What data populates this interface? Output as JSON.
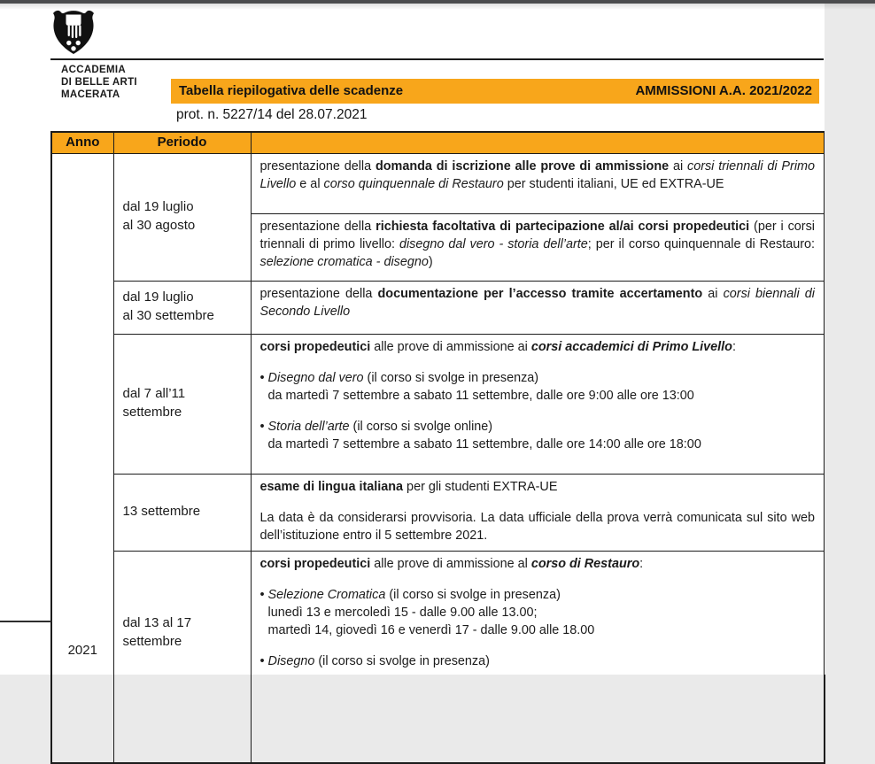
{
  "page": {
    "accent_orange": "#F8A61B",
    "paper_color": "#ffffff",
    "viewer_background": "#eaeaea",
    "top_bar_color": "#4b4c4e"
  },
  "header": {
    "logo_icon": "academy-shield-hand-logo",
    "org_name_lines": [
      "ACCADEMIA",
      "DI BELLE ARTI",
      "MACERATA"
    ],
    "title_bar": {
      "left": "Tabella riepilogativa delle scadenze",
      "right": "AMMISSIONI A.A. 2021/2022"
    },
    "protocol": "prot. n. 5227/14 del 28.07.2021"
  },
  "table": {
    "headers": [
      "Anno",
      "Periodo",
      ""
    ],
    "anno": "2021",
    "rows": [
      {
        "period": [
          "dal 19 luglio",
          "al 30 agosto"
        ],
        "cells": [
          {
            "paras": [
              {
                "seg": [
                  {
                    "t": "presentazione della "
                  },
                  {
                    "t": "domanda di iscrizione alle prove di ammissione",
                    "b": true
                  },
                  {
                    "t": " ai "
                  },
                  {
                    "t": "corsi triennali di Primo Livello",
                    "i": true
                  },
                  {
                    "t": " e al "
                  },
                  {
                    "t": "corso quinquennale di Restauro",
                    "i": true
                  },
                  {
                    "t": " per studenti italiani, UE ed EXTRA-UE"
                  }
                ]
              }
            ]
          },
          {
            "paras": [
              {
                "seg": [
                  {
                    "t": "presentazione della "
                  },
                  {
                    "t": "richiesta facoltativa di partecipazione al/ai corsi propedeutici",
                    "b": true
                  },
                  {
                    "t": " (per i corsi triennali di primo livello: "
                  },
                  {
                    "t": "disegno dal vero - storia dell’arte",
                    "i": true
                  },
                  {
                    "t": "; per il corso quinquennale di Restauro: "
                  },
                  {
                    "t": "selezione cromatica - disegno",
                    "i": true
                  },
                  {
                    "t": ")"
                  }
                ]
              }
            ]
          }
        ]
      },
      {
        "period": [
          "dal 19 luglio",
          "al 30 settembre"
        ],
        "cells": [
          {
            "paras": [
              {
                "seg": [
                  {
                    "t": "presentazione della "
                  },
                  {
                    "t": "documentazione per l’accesso tramite accertamento",
                    "b": true
                  },
                  {
                    "t": " ai "
                  },
                  {
                    "t": "corsi biennali di Secondo Livello",
                    "i": true
                  }
                ]
              }
            ]
          }
        ]
      },
      {
        "period": [
          "dal 7 all’11",
          "settembre"
        ],
        "cells": [
          {
            "paras": [
              {
                "seg": [
                  {
                    "t": "corsi propedeutici",
                    "b": true
                  },
                  {
                    "t": " alle prove di ammissione ai "
                  },
                  {
                    "t": "corsi accademici di Primo Livello",
                    "b": true,
                    "i": true
                  },
                  {
                    "t": ":"
                  }
                ]
              },
              {
                "cls": "gap",
                "seg": [
                  {
                    "t": "• "
                  },
                  {
                    "t": "Disegno dal vero",
                    "i": true
                  },
                  {
                    "t": " (il corso si svolge in presenza)"
                  }
                ]
              },
              {
                "cls": "indent",
                "seg": [
                  {
                    "t": "da martedì 7 settembre a sabato 11 settembre, dalle ore 9:00 alle ore 13:00"
                  }
                ]
              },
              {
                "cls": "gap",
                "seg": [
                  {
                    "t": "• "
                  },
                  {
                    "t": "Storia dell’arte",
                    "i": true
                  },
                  {
                    "t": " (il corso si svolge online)"
                  }
                ]
              },
              {
                "cls": "indent",
                "seg": [
                  {
                    "t": "da martedì 7 settembre a sabato 11 settembre, dalle ore 14:00 alle ore 18:00"
                  }
                ]
              }
            ]
          }
        ]
      },
      {
        "period": [
          "13 settembre"
        ],
        "cells": [
          {
            "paras": [
              {
                "seg": [
                  {
                    "t": "esame di lingua italiana",
                    "b": true
                  },
                  {
                    "t": " per gli studenti EXTRA-UE"
                  }
                ]
              },
              {
                "cls": "gap",
                "seg": [
                  {
                    "t": "La data è da considerarsi provvisoria. La data ufficiale della prova verrà comunicata sul sito web dell’istituzione entro il 5 settembre 2021."
                  }
                ]
              }
            ]
          }
        ]
      },
      {
        "period": [
          "dal 13 al 17",
          "settembre"
        ],
        "cells": [
          {
            "paras": [
              {
                "seg": [
                  {
                    "t": "corsi propedeutici",
                    "b": true
                  },
                  {
                    "t": " alle prove di ammissione al "
                  },
                  {
                    "t": "corso di Restauro",
                    "b": true,
                    "i": true
                  },
                  {
                    "t": ":"
                  }
                ]
              },
              {
                "cls": "gap",
                "seg": [
                  {
                    "t": "• "
                  },
                  {
                    "t": "Selezione Cromatica",
                    "i": true
                  },
                  {
                    "t": " (il corso si svolge in presenza)"
                  }
                ]
              },
              {
                "cls": "indent",
                "seg": [
                  {
                    "t": "lunedì 13 e mercoledì 15 - dalle 9.00 alle 13.00;"
                  }
                ]
              },
              {
                "cls": "indent",
                "seg": [
                  {
                    "t": "martedì 14, giovedì 16 e venerdì 17 - dalle 9.00 alle 18.00"
                  }
                ]
              },
              {
                "cls": "gap",
                "seg": [
                  {
                    "t": "• "
                  },
                  {
                    "t": "Disegno",
                    "i": true
                  },
                  {
                    "t": " (il corso si svolge in presenza)"
                  }
                ]
              }
            ]
          }
        ]
      }
    ]
  }
}
